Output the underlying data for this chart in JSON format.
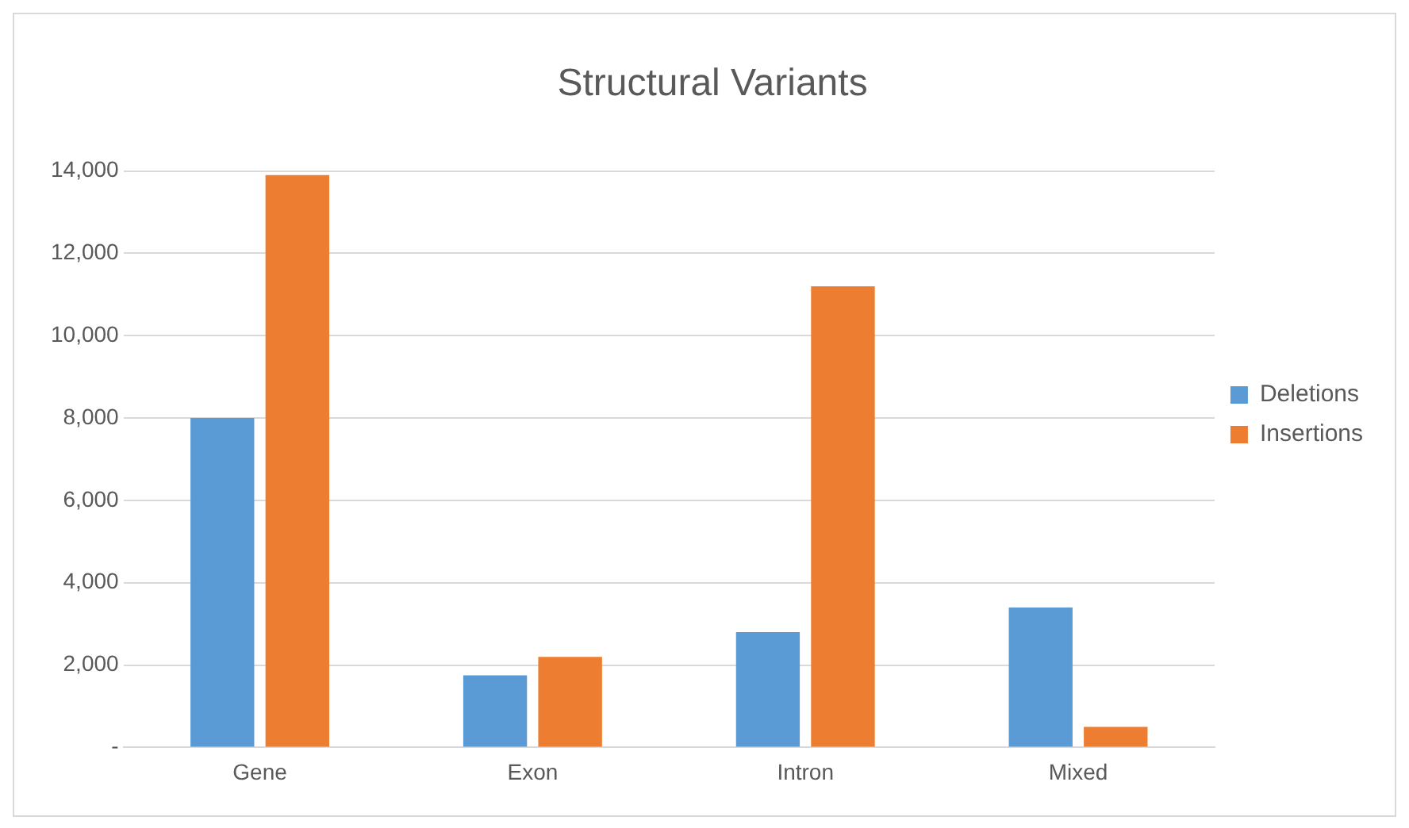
{
  "chart_data": {
    "type": "bar",
    "title": "Structural Variants",
    "categories": [
      "Gene",
      "Exon",
      "Intron",
      "Mixed"
    ],
    "series": [
      {
        "name": "Deletions",
        "color": "#5b9bd5",
        "values": [
          8000,
          1750,
          2800,
          3400
        ]
      },
      {
        "name": "Insertions",
        "color": "#ed7d31",
        "values": [
          13900,
          2200,
          11200,
          500
        ]
      }
    ],
    "ylim": [
      0,
      14000
    ],
    "yticks": [
      {
        "value": 0,
        "label": "-"
      },
      {
        "value": 2000,
        "label": "2,000"
      },
      {
        "value": 4000,
        "label": "4,000"
      },
      {
        "value": 6000,
        "label": "6,000"
      },
      {
        "value": 8000,
        "label": "8,000"
      },
      {
        "value": 10000,
        "label": "10,000"
      },
      {
        "value": 12000,
        "label": "12,000"
      },
      {
        "value": 14000,
        "label": "14,000"
      }
    ],
    "grid": "y",
    "legend": "right"
  }
}
